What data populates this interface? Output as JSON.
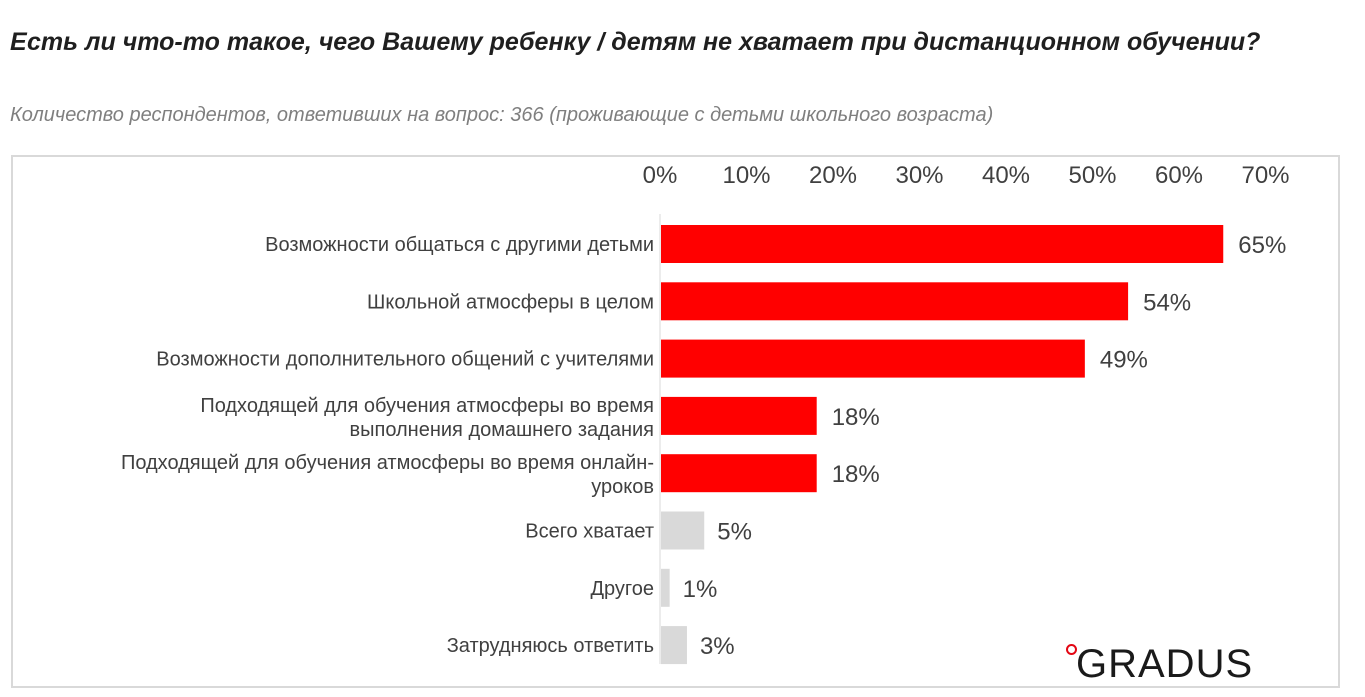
{
  "header": {
    "title": "Есть ли что-то такое, чего Вашему ребенку / детям не хватает при дистанционном обучении?",
    "subtitle": "Количество респондентов, ответивших на вопрос: 366 (проживающие с детьми школьного возраста)"
  },
  "logo": {
    "text": "GRADUS"
  },
  "colors": {
    "highlight": "#ff0000",
    "neutral": "#d9d9d9",
    "text": "#404040"
  },
  "chart_data": {
    "type": "bar",
    "orientation": "horizontal",
    "title": "",
    "xlabel": "",
    "ylabel": "",
    "xlim": [
      0,
      70
    ],
    "ticks": [
      "0%",
      "10%",
      "20%",
      "30%",
      "40%",
      "50%",
      "60%",
      "70%"
    ],
    "tick_values": [
      0,
      10,
      20,
      30,
      40,
      50,
      60,
      70
    ],
    "grid": false,
    "legend": "none",
    "categories": [
      [
        "Возможности общаться с другими детьми"
      ],
      [
        "Школьной атмосферы в целом"
      ],
      [
        "Возможности дополнительного общений с учителями"
      ],
      [
        "Подходящей для обучения атмосферы во время",
        "выполнения домашнего задания"
      ],
      [
        "Подходящей для обучения атмосферы во время онлайн-",
        "уроков"
      ],
      [
        "Всего хватает"
      ],
      [
        "Другое"
      ],
      [
        "Затрудняюсь ответить"
      ]
    ],
    "values": [
      65,
      54,
      49,
      18,
      18,
      5,
      1,
      3
    ],
    "labels": [
      "65%",
      "54%",
      "49%",
      "18%",
      "18%",
      "5%",
      "1%",
      "3%"
    ],
    "highlight": [
      true,
      true,
      true,
      true,
      true,
      false,
      false,
      false
    ]
  }
}
